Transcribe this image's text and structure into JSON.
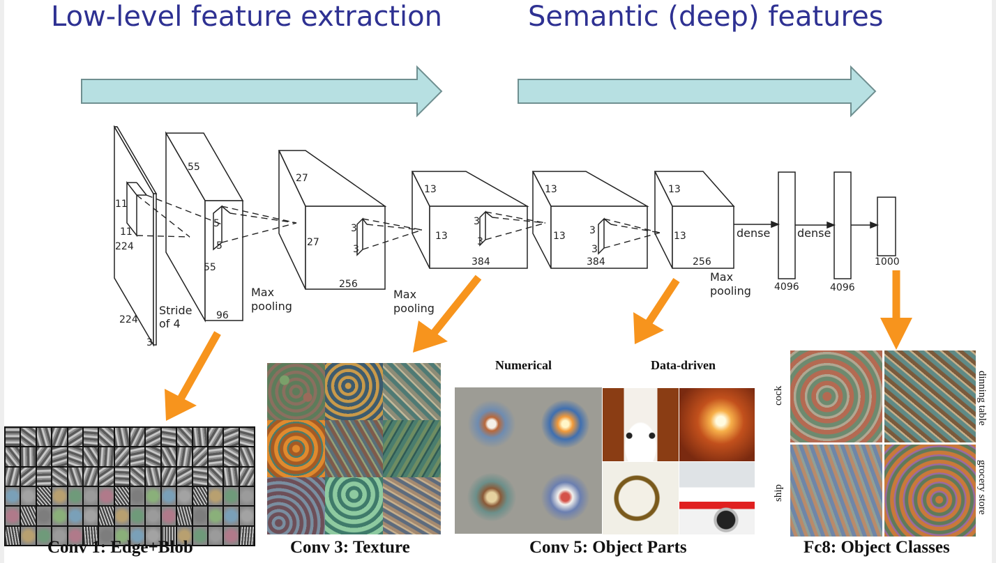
{
  "headings": {
    "left": "Low-level feature extraction",
    "right": "Semantic (deep) features"
  },
  "colors": {
    "heading": "#2e3192",
    "banner_fill": "#b7e0e2",
    "banner_stroke": "#6f8f90",
    "callout_arrow": "#f7941d"
  },
  "network": {
    "input": {
      "height_label": "224",
      "width_label": "224",
      "depth_label": "3",
      "kernel_h": "11",
      "kernel_w": "11",
      "stride_label": "Stride\nof 4"
    },
    "conv1": {
      "top_label": "55",
      "side_label": "55",
      "depth_label": "96",
      "kernel_h": "5",
      "kernel_w": "5",
      "pool_label": "Max\npooling"
    },
    "conv2": {
      "top_label": "27",
      "side_label": "27",
      "depth_label": "256",
      "kernel_h": "3",
      "kernel_w": "3",
      "pool_label": "Max\npooling"
    },
    "conv3": {
      "top_label": "13",
      "side_label": "13",
      "depth_label": "384",
      "kernel_h": "3",
      "kernel_w": "3"
    },
    "conv4": {
      "top_label": "13",
      "side_label": "13",
      "depth_label": "384",
      "kernel_h": "3",
      "kernel_w": "3"
    },
    "conv5": {
      "top_label": "13",
      "side_label": "13",
      "depth_label": "256",
      "pool_label": "Max\npooling"
    },
    "dense1": {
      "label": "dense",
      "size_label": "4096"
    },
    "dense2": {
      "label": "dense",
      "size_label": "4096"
    },
    "output": {
      "size_label": "1000"
    }
  },
  "panels": {
    "conv1": {
      "caption": "Conv 1: Edge+Blob"
    },
    "conv3": {
      "caption": "Conv 3: Texture"
    },
    "conv5": {
      "caption": "Conv 5: Object Parts",
      "left_title": "Numerical",
      "right_title": "Data-driven"
    },
    "fc8": {
      "caption": "Fc8: Object Classes",
      "labels": [
        "cock",
        "dinning table",
        "ship",
        "grocery store"
      ]
    }
  }
}
